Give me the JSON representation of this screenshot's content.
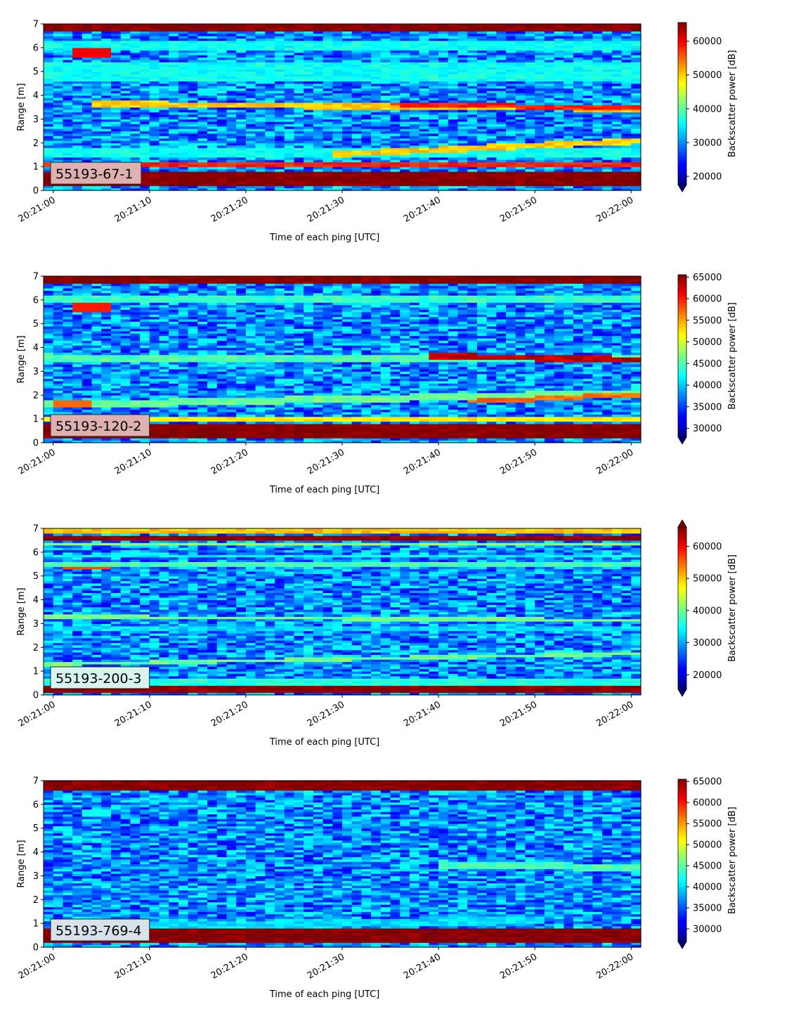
{
  "chart_data": [
    {
      "type": "heatmap",
      "panel_label": "55193-67-1",
      "panel_label_bg": "#deb0b0",
      "xlabel": "Time of each ping [UTC]",
      "ylabel": "Range [m]",
      "x_ticks": [
        "20:21:00",
        "20:21:10",
        "20:21:20",
        "20:21:30",
        "20:21:40",
        "20:21:50",
        "20:22:00"
      ],
      "x_range_seconds": [
        -1,
        61
      ],
      "ylim": [
        0,
        7
      ],
      "y_ticks": [
        0,
        1,
        2,
        3,
        4,
        5,
        6,
        7
      ],
      "colorbar": {
        "label": "Backscatter power [dB]",
        "colormap": "jet",
        "range": [
          17500,
          65535
        ],
        "ticks": [
          20000,
          30000,
          40000,
          50000,
          60000
        ],
        "extend": "min"
      },
      "features": [
        {
          "kind": "band",
          "y_start_m": 0.5,
          "y_end_m": 0.5,
          "t_start_s": 0,
          "t_end_s": 61,
          "value": 65535,
          "width_m": 0.6
        },
        {
          "kind": "band",
          "y_start_m": 1.1,
          "y_end_m": 1.1,
          "t_start_s": 0,
          "t_end_s": 61,
          "value": 58000,
          "width_m": 0.15
        },
        {
          "kind": "band",
          "y_start_m": 1.6,
          "y_end_m": 1.6,
          "t_start_s": 0,
          "t_end_s": 61,
          "value": 36000,
          "width_m": 0.35
        },
        {
          "kind": "band",
          "y_start_m": 1.55,
          "y_end_m": 2.1,
          "t_start_s": 30,
          "t_end_s": 61,
          "value": 50000,
          "width_m": 0.25
        },
        {
          "kind": "band",
          "y_start_m": 3.65,
          "y_end_m": 3.45,
          "t_start_s": 5,
          "t_end_s": 61,
          "value": 50000,
          "width_m": 0.25
        },
        {
          "kind": "band",
          "y_start_m": 3.65,
          "y_end_m": 3.45,
          "t_start_s": 36,
          "t_end_s": 61,
          "value": 58000,
          "width_m": 0.2
        },
        {
          "kind": "band",
          "y_start_m": 5.0,
          "y_end_m": 5.0,
          "t_start_s": 0,
          "t_end_s": 61,
          "value": 36000,
          "width_m": 0.9
        },
        {
          "kind": "band",
          "y_start_m": 6.1,
          "y_end_m": 6.1,
          "t_start_s": 0,
          "t_end_s": 61,
          "value": 36000,
          "width_m": 0.4
        },
        {
          "kind": "blob",
          "y_center_m": 5.8,
          "t_start_s": 2,
          "t_end_s": 6,
          "value": 60000,
          "width_m": 0.4
        },
        {
          "kind": "band",
          "y_start_m": 6.85,
          "y_end_m": 6.85,
          "t_start_s": 0,
          "t_end_s": 61,
          "value": 65535,
          "width_m": 0.3
        }
      ]
    },
    {
      "type": "heatmap",
      "panel_label": "55193-120-2",
      "panel_label_bg": "#deb0b0",
      "xlabel": "Time of each ping [UTC]",
      "ylabel": "Range [m]",
      "x_ticks": [
        "20:21:00",
        "20:21:10",
        "20:21:20",
        "20:21:30",
        "20:21:40",
        "20:21:50",
        "20:22:00"
      ],
      "x_range_seconds": [
        -1,
        61
      ],
      "ylim": [
        0,
        7
      ],
      "y_ticks": [
        0,
        1,
        2,
        3,
        4,
        5,
        6,
        7
      ],
      "colorbar": {
        "label": "Backscatter power [dB]",
        "colormap": "jet",
        "range": [
          28000,
          65535
        ],
        "ticks": [
          30000,
          35000,
          40000,
          45000,
          50000,
          55000,
          60000,
          65000
        ],
        "extend": "min"
      },
      "features": [
        {
          "kind": "band",
          "y_start_m": 0.5,
          "y_end_m": 0.5,
          "t_start_s": 0,
          "t_end_s": 61,
          "value": 65535,
          "width_m": 0.6
        },
        {
          "kind": "band",
          "y_start_m": 1.0,
          "y_end_m": 1.0,
          "t_start_s": 0,
          "t_end_s": 61,
          "value": 52000,
          "width_m": 0.25
        },
        {
          "kind": "band",
          "y_start_m": 1.6,
          "y_end_m": 2.1,
          "t_start_s": 0,
          "t_end_s": 61,
          "value": 46000,
          "width_m": 0.3
        },
        {
          "kind": "band",
          "y_start_m": 1.75,
          "y_end_m": 2.05,
          "t_start_s": 44,
          "t_end_s": 61,
          "value": 57000,
          "width_m": 0.2
        },
        {
          "kind": "blob",
          "y_center_m": 1.65,
          "t_start_s": 0,
          "t_end_s": 4,
          "value": 57000,
          "width_m": 0.3
        },
        {
          "kind": "band",
          "y_start_m": 3.6,
          "y_end_m": 3.5,
          "t_start_s": 0,
          "t_end_s": 61,
          "value": 45000,
          "width_m": 0.3
        },
        {
          "kind": "band",
          "y_start_m": 3.65,
          "y_end_m": 3.5,
          "t_start_s": 40,
          "t_end_s": 61,
          "value": 63000,
          "width_m": 0.25
        },
        {
          "kind": "band",
          "y_start_m": 6.05,
          "y_end_m": 6.05,
          "t_start_s": 0,
          "t_end_s": 61,
          "value": 44000,
          "width_m": 0.3
        },
        {
          "kind": "blob",
          "y_center_m": 5.7,
          "t_start_s": 2,
          "t_end_s": 6,
          "value": 60000,
          "width_m": 0.35
        },
        {
          "kind": "band",
          "y_start_m": 6.85,
          "y_end_m": 6.85,
          "t_start_s": 0,
          "t_end_s": 61,
          "value": 65535,
          "width_m": 0.3
        }
      ]
    },
    {
      "type": "heatmap",
      "panel_label": "55193-200-3",
      "panel_label_bg": "#d6f4f0",
      "xlabel": "Time of each ping [UTC]",
      "ylabel": "Range [m]",
      "x_ticks": [
        "20:21:00",
        "20:21:10",
        "20:21:20",
        "20:21:30",
        "20:21:40",
        "20:21:50",
        "20:22:00"
      ],
      "x_range_seconds": [
        -1,
        61
      ],
      "ylim": [
        0,
        7
      ],
      "y_ticks": [
        0,
        1,
        2,
        3,
        4,
        5,
        6,
        7
      ],
      "colorbar": {
        "label": "Backscatter power [dB]",
        "colormap": "jet",
        "range": [
          15500,
          66000
        ],
        "ticks": [
          20000,
          30000,
          40000,
          50000,
          60000
        ],
        "extend": "both"
      },
      "features": [
        {
          "kind": "band",
          "y_start_m": 0.25,
          "y_end_m": 0.25,
          "t_start_s": 0,
          "t_end_s": 61,
          "value": 65535,
          "width_m": 0.25
        },
        {
          "kind": "band",
          "y_start_m": 0.6,
          "y_end_m": 0.6,
          "t_start_s": 0,
          "t_end_s": 61,
          "value": 36000,
          "width_m": 0.3
        },
        {
          "kind": "band",
          "y_start_m": 1.3,
          "y_end_m": 1.75,
          "t_start_s": 0,
          "t_end_s": 61,
          "value": 40000,
          "width_m": 0.15
        },
        {
          "kind": "band",
          "y_start_m": 3.3,
          "y_end_m": 3.15,
          "t_start_s": 0,
          "t_end_s": 61,
          "value": 40000,
          "width_m": 0.15
        },
        {
          "kind": "band",
          "y_start_m": 2.8,
          "y_end_m": 2.8,
          "t_start_s": 0,
          "t_end_s": 61,
          "value": 32000,
          "width_m": 0.15
        },
        {
          "kind": "band",
          "y_start_m": 5.5,
          "y_end_m": 5.5,
          "t_start_s": 0,
          "t_end_s": 61,
          "value": 38000,
          "width_m": 0.15
        },
        {
          "kind": "band",
          "y_start_m": 5.85,
          "y_end_m": 5.85,
          "t_start_s": 0,
          "t_end_s": 61,
          "value": 34000,
          "width_m": 0.15
        },
        {
          "kind": "blob",
          "y_center_m": 5.35,
          "t_start_s": 1,
          "t_end_s": 6,
          "value": 56000,
          "width_m": 0.15
        },
        {
          "kind": "band",
          "y_start_m": 6.35,
          "y_end_m": 6.35,
          "t_start_s": 0,
          "t_end_s": 61,
          "value": 42000,
          "width_m": 0.15
        },
        {
          "kind": "band",
          "y_start_m": 6.6,
          "y_end_m": 6.6,
          "t_start_s": 0,
          "t_end_s": 61,
          "value": 65535,
          "width_m": 0.25
        },
        {
          "kind": "band",
          "y_start_m": 6.9,
          "y_end_m": 6.9,
          "t_start_s": 0,
          "t_end_s": 61,
          "value": 50000,
          "width_m": 0.2
        }
      ]
    },
    {
      "type": "heatmap",
      "panel_label": "55193-769-4",
      "panel_label_bg": "#d6e4ea",
      "xlabel": "Time of each ping [UTC]",
      "ylabel": "Range [m]",
      "x_ticks": [
        "20:21:00",
        "20:21:10",
        "20:21:20",
        "20:21:30",
        "20:21:40",
        "20:21:50",
        "20:22:00"
      ],
      "x_range_seconds": [
        -1,
        61
      ],
      "ylim": [
        0,
        7
      ],
      "y_ticks": [
        0,
        1,
        2,
        3,
        4,
        5,
        6,
        7
      ],
      "colorbar": {
        "label": "Backscatter power [dB]",
        "colormap": "jet",
        "range": [
          27000,
          65535
        ],
        "ticks": [
          30000,
          35000,
          40000,
          45000,
          50000,
          55000,
          60000,
          65000
        ],
        "extend": "min"
      },
      "features": [
        {
          "kind": "band",
          "y_start_m": 0.5,
          "y_end_m": 0.5,
          "t_start_s": 0,
          "t_end_s": 61,
          "value": 65535,
          "width_m": 0.5
        },
        {
          "kind": "band",
          "y_start_m": 0.9,
          "y_end_m": 1.15,
          "t_start_s": 10,
          "t_end_s": 50,
          "value": 40000,
          "width_m": 0.35
        },
        {
          "kind": "band",
          "y_start_m": 2.3,
          "y_end_m": 2.3,
          "t_start_s": 0,
          "t_end_s": 61,
          "value": 34000,
          "width_m": 0.6
        },
        {
          "kind": "band",
          "y_start_m": 3.5,
          "y_end_m": 3.35,
          "t_start_s": 41,
          "t_end_s": 61,
          "value": 44000,
          "width_m": 0.3
        },
        {
          "kind": "blob",
          "y_center_m": 5.65,
          "t_start_s": 3,
          "t_end_s": 6,
          "value": 42000,
          "width_m": 0.3
        },
        {
          "kind": "band",
          "y_start_m": 6.82,
          "y_end_m": 6.82,
          "t_start_s": 0,
          "t_end_s": 61,
          "value": 65535,
          "width_m": 0.35
        },
        {
          "kind": "blob",
          "y_center_m": 6.85,
          "t_start_s": 40,
          "t_end_s": 41,
          "value": 60000,
          "width_m": 0.3
        }
      ]
    }
  ]
}
